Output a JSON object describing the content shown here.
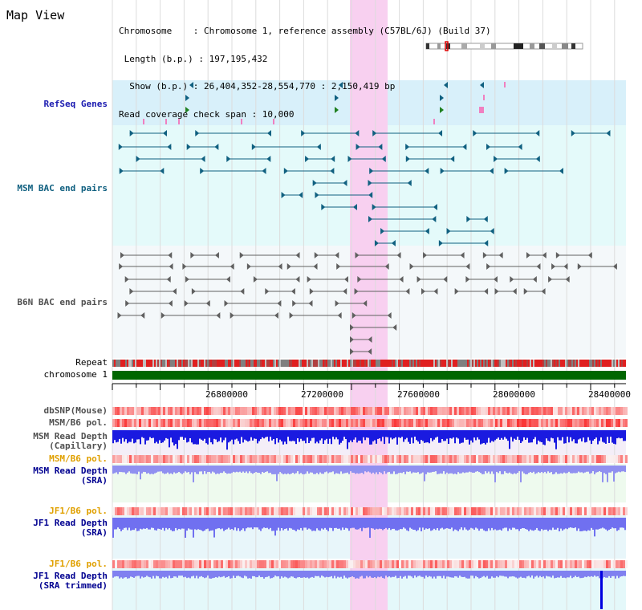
{
  "header": {
    "view_title": "Map View",
    "lines": [
      "Chromosome    : Chromosome 1, reference assembly (C57BL/6J) (Build 37)",
      " Length (b.p.) : 197,195,432",
      "  Show (b.p.) : 26,404,352-28,554,770 : 2,150,419 bp",
      "Read coverage check span : 10,000"
    ]
  },
  "tracks": {
    "refseq": "RefSeq Genes",
    "msm_bac": "MSM BAC end pairs",
    "b6n_bac": "B6N BAC end pairs",
    "repeat": "Repeat",
    "chromosome": "chromosome 1",
    "dbsnp": "dbSNP(Mouse)",
    "msm_pol1": "MSM/B6 pol.",
    "msm_depth_cap_1": "MSM Read Depth",
    "msm_depth_cap_2": "(Capillary)",
    "msm_pol2": "MSM/B6 pol.",
    "msm_depth_sra_1": "MSM Read Depth",
    "msm_depth_sra_2": "(SRA)",
    "jf1_pol1": "JF1/B6 pol.",
    "jf1_depth_1": "JF1 Read Depth",
    "jf1_depth_2": "(SRA)",
    "jf1_pol2": "JF1/B6 pol.",
    "jf1_trim_1": "JF1 Read Depth",
    "jf1_trim_2": "(SRA trimmed)"
  },
  "axis": {
    "ticks": [
      "26800000",
      "27200000",
      "27600000",
      "28000000",
      "28400000"
    ]
  },
  "colors": {
    "highlight": "#f8d0f0",
    "chromosome_bar": "#006600",
    "depth_bar": "#1010e0",
    "refseq_bg": "#d8f0fa",
    "msm_bg": "#e4fafa",
    "b6n_bg": "#f4f8fa"
  }
}
